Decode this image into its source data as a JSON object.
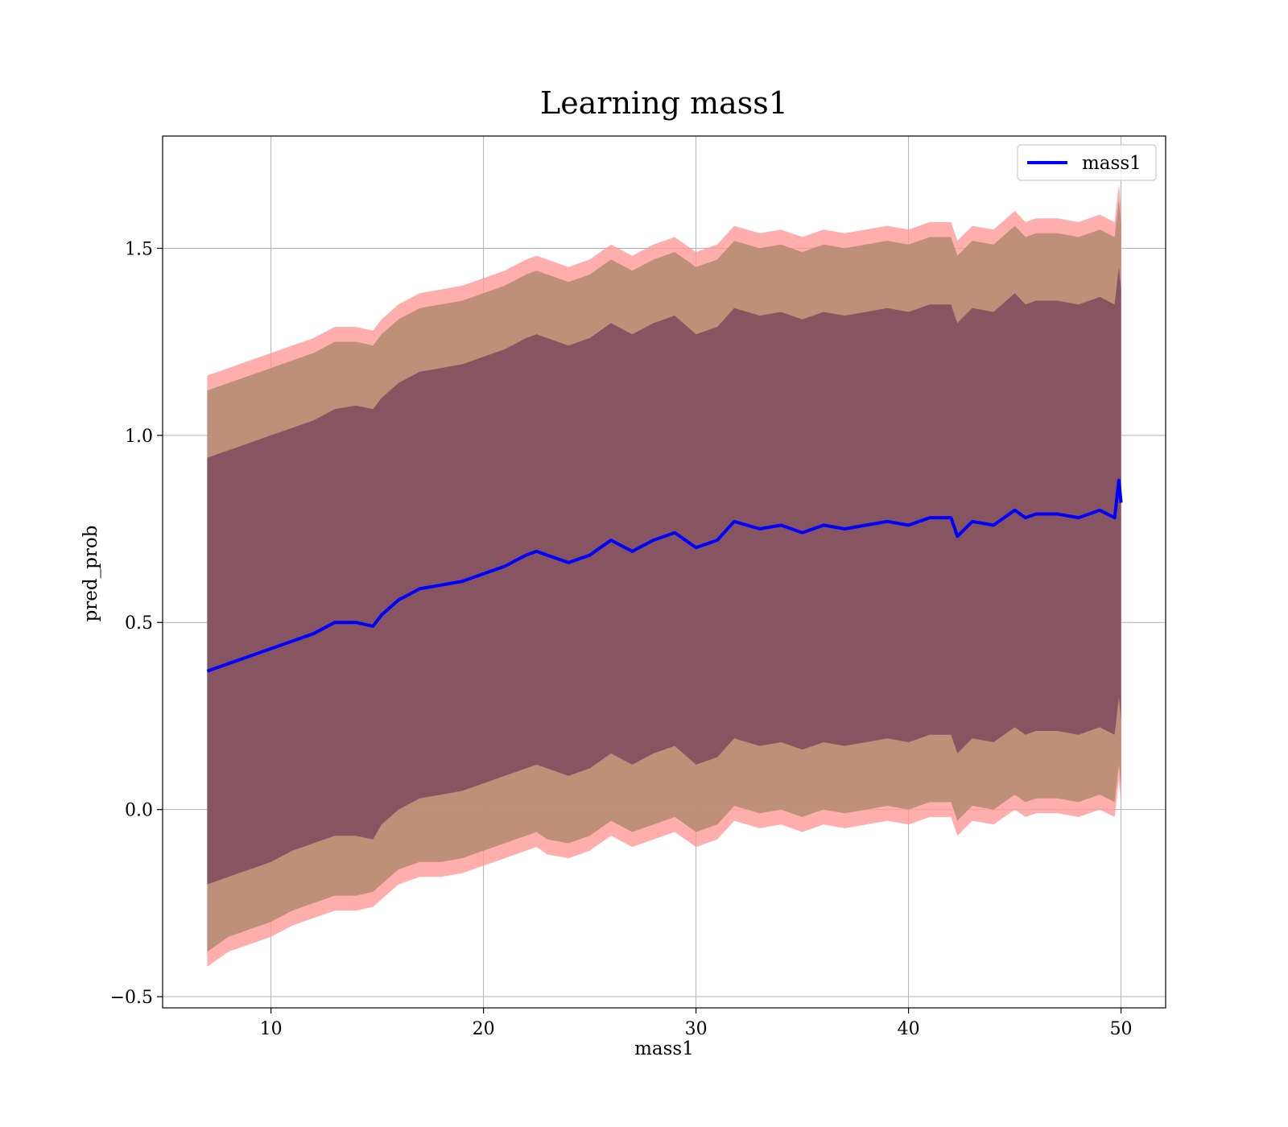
{
  "chart_data": {
    "type": "line",
    "title": "Learning mass1",
    "xlabel": "mass1",
    "ylabel": "pred_prob",
    "xlim": [
      4.9,
      52.1
    ],
    "ylim": [
      -0.53,
      1.8
    ],
    "xticks": [
      10,
      20,
      30,
      40,
      50
    ],
    "yticks": [
      -0.5,
      0.0,
      0.5,
      1.0,
      1.5
    ],
    "ytick_labels": [
      "−0.5",
      "0.0",
      "0.5",
      "1.0",
      "1.5"
    ],
    "grid": true,
    "legend": {
      "position": "top-right",
      "entries": [
        "mass1"
      ]
    },
    "colors": {
      "line": "#0000ff",
      "band1": "#ff9999",
      "band2": "#b38b6d",
      "band3": "#7e4a5e"
    },
    "series": [
      {
        "name": "mass1",
        "x": [
          7,
          8,
          9,
          10,
          11,
          12,
          13,
          14,
          14.8,
          15.2,
          16,
          17,
          18,
          19,
          20,
          21,
          22,
          22.5,
          23,
          24,
          25,
          26,
          27,
          28,
          29,
          30,
          31,
          31.8,
          33,
          34,
          35,
          36,
          37,
          38,
          39,
          40,
          41,
          42,
          42.3,
          43,
          44,
          45,
          45.5,
          46,
          47,
          48,
          49,
          49.7,
          49.9,
          50
        ],
        "y": [
          0.37,
          0.39,
          0.41,
          0.43,
          0.45,
          0.47,
          0.5,
          0.5,
          0.49,
          0.52,
          0.56,
          0.59,
          0.6,
          0.61,
          0.63,
          0.65,
          0.68,
          0.69,
          0.68,
          0.66,
          0.68,
          0.72,
          0.69,
          0.72,
          0.74,
          0.7,
          0.72,
          0.77,
          0.75,
          0.76,
          0.74,
          0.76,
          0.75,
          0.76,
          0.77,
          0.76,
          0.78,
          0.78,
          0.73,
          0.77,
          0.76,
          0.8,
          0.78,
          0.79,
          0.79,
          0.78,
          0.8,
          0.78,
          0.88,
          0.82
        ]
      }
    ],
    "bands": [
      {
        "lower": [
          -0.42,
          -0.38,
          -0.36,
          -0.34,
          -0.31,
          -0.29,
          -0.27,
          -0.27,
          -0.26,
          -0.24,
          -0.2,
          -0.18,
          -0.18,
          -0.17,
          -0.15,
          -0.13,
          -0.11,
          -0.1,
          -0.12,
          -0.13,
          -0.11,
          -0.07,
          -0.1,
          -0.08,
          -0.06,
          -0.1,
          -0.08,
          -0.03,
          -0.05,
          -0.04,
          -0.06,
          -0.04,
          -0.05,
          -0.04,
          -0.03,
          -0.04,
          -0.02,
          -0.02,
          -0.07,
          -0.03,
          -0.04,
          0.0,
          -0.02,
          -0.01,
          -0.01,
          -0.02,
          0.0,
          -0.02,
          0.08,
          0.02
        ],
        "upper": [
          1.16,
          1.18,
          1.2,
          1.22,
          1.24,
          1.26,
          1.29,
          1.29,
          1.28,
          1.31,
          1.35,
          1.38,
          1.39,
          1.4,
          1.42,
          1.44,
          1.47,
          1.48,
          1.47,
          1.45,
          1.47,
          1.51,
          1.48,
          1.51,
          1.53,
          1.49,
          1.51,
          1.56,
          1.54,
          1.55,
          1.53,
          1.55,
          1.54,
          1.55,
          1.56,
          1.55,
          1.57,
          1.57,
          1.52,
          1.56,
          1.55,
          1.6,
          1.57,
          1.58,
          1.58,
          1.57,
          1.59,
          1.57,
          1.67,
          1.61
        ]
      },
      {
        "lower": [
          -0.38,
          -0.34,
          -0.32,
          -0.3,
          -0.27,
          -0.25,
          -0.23,
          -0.23,
          -0.22,
          -0.2,
          -0.16,
          -0.14,
          -0.14,
          -0.13,
          -0.11,
          -0.09,
          -0.07,
          -0.06,
          -0.08,
          -0.09,
          -0.07,
          -0.03,
          -0.06,
          -0.04,
          -0.02,
          -0.06,
          -0.04,
          0.01,
          -0.01,
          0.0,
          -0.02,
          0.0,
          -0.01,
          0.0,
          0.01,
          0.0,
          0.02,
          0.02,
          -0.03,
          0.01,
          0.0,
          0.04,
          0.02,
          0.03,
          0.03,
          0.02,
          0.04,
          0.02,
          0.12,
          0.06
        ],
        "upper": [
          1.12,
          1.14,
          1.16,
          1.18,
          1.2,
          1.22,
          1.25,
          1.25,
          1.24,
          1.27,
          1.31,
          1.34,
          1.35,
          1.36,
          1.38,
          1.4,
          1.43,
          1.44,
          1.43,
          1.41,
          1.43,
          1.47,
          1.44,
          1.47,
          1.49,
          1.45,
          1.47,
          1.52,
          1.5,
          1.51,
          1.49,
          1.51,
          1.5,
          1.51,
          1.52,
          1.51,
          1.53,
          1.53,
          1.48,
          1.52,
          1.51,
          1.56,
          1.53,
          1.54,
          1.54,
          1.53,
          1.55,
          1.53,
          1.63,
          1.57
        ]
      },
      {
        "lower": [
          -0.2,
          -0.18,
          -0.16,
          -0.14,
          -0.11,
          -0.09,
          -0.07,
          -0.07,
          -0.08,
          -0.04,
          0.0,
          0.03,
          0.04,
          0.05,
          0.07,
          0.09,
          0.11,
          0.12,
          0.11,
          0.09,
          0.11,
          0.15,
          0.12,
          0.15,
          0.17,
          0.12,
          0.14,
          0.19,
          0.17,
          0.18,
          0.16,
          0.18,
          0.17,
          0.18,
          0.19,
          0.18,
          0.2,
          0.2,
          0.15,
          0.19,
          0.18,
          0.22,
          0.2,
          0.21,
          0.21,
          0.2,
          0.22,
          0.2,
          0.3,
          0.24
        ],
        "upper": [
          0.94,
          0.96,
          0.98,
          1.0,
          1.02,
          1.04,
          1.07,
          1.08,
          1.07,
          1.1,
          1.14,
          1.17,
          1.18,
          1.19,
          1.21,
          1.23,
          1.26,
          1.27,
          1.26,
          1.24,
          1.26,
          1.3,
          1.27,
          1.3,
          1.32,
          1.27,
          1.29,
          1.34,
          1.32,
          1.33,
          1.31,
          1.33,
          1.32,
          1.33,
          1.34,
          1.33,
          1.35,
          1.35,
          1.3,
          1.34,
          1.33,
          1.38,
          1.35,
          1.36,
          1.36,
          1.35,
          1.37,
          1.35,
          1.45,
          1.39
        ]
      }
    ]
  }
}
